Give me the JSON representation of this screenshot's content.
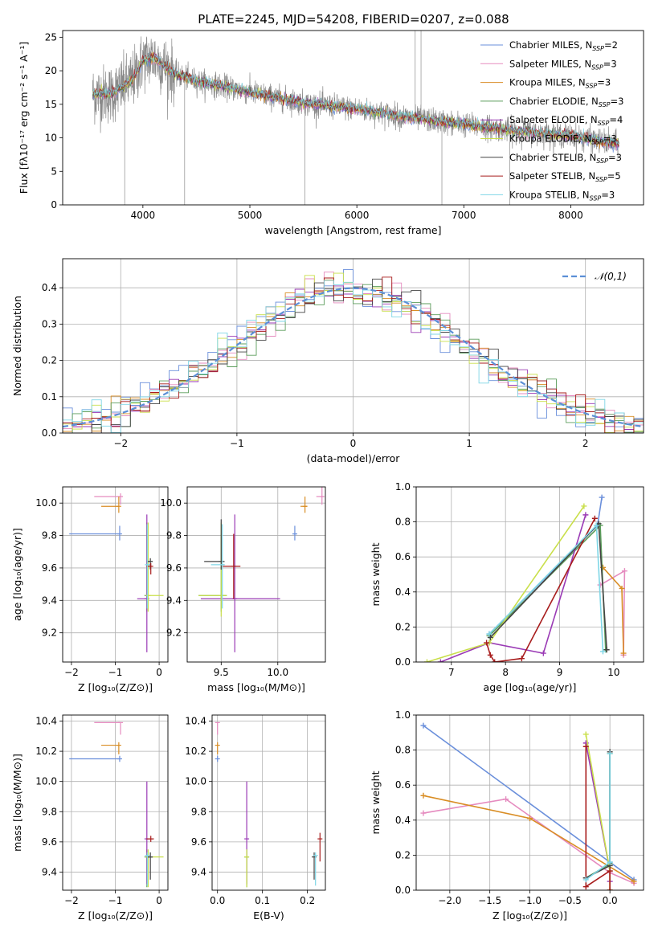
{
  "figure": {
    "title": "PLATE=2245, MJD=54208, FIBERID=0207, z=0.088",
    "models": [
      {
        "name": "Chabrier MILES",
        "nssp": "2",
        "color": "#6a8fdb"
      },
      {
        "name": "Salpeter MILES",
        "nssp": "3",
        "color": "#e58bbf"
      },
      {
        "name": "Kroupa MILES",
        "nssp": "3",
        "color": "#d98d24"
      },
      {
        "name": "Chabrier ELODIE",
        "nssp": "3",
        "color": "#5c9e5c"
      },
      {
        "name": "Salpeter ELODIE",
        "nssp": "4",
        "color": "#9a3ab5"
      },
      {
        "name": "Kroupa ELODIE",
        "nssp": "3",
        "color": "#c9df4a"
      },
      {
        "name": "Chabrier STELIB",
        "nssp": "3",
        "color": "#444444"
      },
      {
        "name": "Salpeter STELIB",
        "nssp": "5",
        "color": "#a81d1d"
      },
      {
        "name": "Kroupa STELIB",
        "nssp": "3",
        "color": "#7fd6e6"
      }
    ],
    "nssp_label": "N",
    "nssp_sub": "SSP"
  },
  "chart_data": [
    {
      "id": "spectrum",
      "type": "line",
      "xlabel": "wavelength [Angstrom, rest frame]",
      "ylabel": "Flux [fλ10⁻¹⁷ erg cm⁻² s⁻¹ A⁻¹]",
      "xlim": [
        3250,
        8680
      ],
      "ylim": [
        0,
        26
      ],
      "xticks": [
        4000,
        5000,
        6000,
        7000,
        8000
      ],
      "yticks": [
        0,
        5,
        10,
        15,
        20,
        25
      ],
      "legend": "right",
      "data_trend": {
        "x": [
          3530,
          3700,
          3900,
          4000,
          4100,
          4300,
          4500,
          5000,
          5500,
          6000,
          6500,
          7000,
          7500,
          8000,
          8450
        ],
        "flux": [
          16.5,
          16.5,
          18.5,
          21.5,
          22.0,
          19.5,
          18.5,
          16.8,
          15.2,
          14.3,
          13.0,
          12.0,
          11.0,
          10.3,
          9.0
        ]
      }
    },
    {
      "id": "residuals",
      "type": "histogram",
      "xlabel": "(data-model)/error",
      "ylabel": "Normed distribution",
      "xlim": [
        -2.5,
        2.5
      ],
      "ylim": [
        0,
        0.48
      ],
      "xticks": [
        -2,
        -1,
        0,
        1,
        2
      ],
      "yticks": [
        0,
        0.1,
        0.2,
        0.3,
        0.4
      ],
      "legend": "𝒩(0,1)",
      "legend_position": "top-right",
      "grid": true
    },
    {
      "id": "age_vs_Z",
      "type": "errorbar",
      "xlabel": "Z [log₁₀(Z/Z⊙)]",
      "ylabel": "age  [log₁₀(age/yr)]",
      "xlim": [
        -2.2,
        0.2
      ],
      "ylim": [
        9.02,
        10.1
      ],
      "xticks": [
        -2,
        -1,
        0
      ],
      "yticks": [
        9.2,
        9.4,
        9.6,
        9.8,
        10.0
      ],
      "grid": true,
      "points": [
        {
          "m": 0,
          "x": -0.9,
          "xerr": [
            1.15,
            0
          ],
          "y": 9.81,
          "yerr": [
            0.04,
            0.05
          ]
        },
        {
          "m": 1,
          "x": -0.88,
          "xerr": [
            0.6,
            0
          ],
          "y": 10.04,
          "yerr": [
            0.05,
            0.02
          ]
        },
        {
          "m": 2,
          "x": -0.92,
          "xerr": [
            0.4,
            0
          ],
          "y": 9.98,
          "yerr": [
            0.04,
            0.06
          ]
        },
        {
          "m": 3,
          "x": -0.28,
          "xerr": [
            0.02,
            0.02
          ],
          "y": 9.43,
          "yerr": [
            0.1,
            0.45
          ]
        },
        {
          "m": 4,
          "x": -0.28,
          "xerr": [
            0.22,
            0.02
          ],
          "y": 9.41,
          "yerr": [
            0.33,
            0.52
          ]
        },
        {
          "m": 5,
          "x": -0.25,
          "xerr": [
            0.05,
            0.35
          ],
          "y": 9.43,
          "yerr": [
            0.1,
            0.45
          ]
        },
        {
          "m": 6,
          "x": -0.2,
          "xerr": [
            0.08,
            0.05
          ],
          "y": 9.64,
          "yerr": [
            0.05,
            0.02
          ]
        },
        {
          "m": 7,
          "x": -0.19,
          "xerr": [
            0.1,
            0.02
          ],
          "y": 9.61,
          "yerr": [
            0.05,
            0.02
          ]
        },
        {
          "m": 8,
          "x": -0.27,
          "xerr": [
            0.02,
            0.04
          ],
          "y": 9.62,
          "yerr": [
            0.27,
            0.25
          ]
        }
      ]
    },
    {
      "id": "age_vs_mass",
      "type": "errorbar",
      "xlabel": "mass [log₁₀(M/M⊙)]",
      "ylabel": "",
      "xlim": [
        9.2,
        10.42
      ],
      "ylim": [
        9.02,
        10.1
      ],
      "xticks": [
        9.5,
        10.0
      ],
      "yticks": [
        9.2,
        9.4,
        9.6,
        9.8,
        10.0
      ],
      "grid": true,
      "points": [
        {
          "m": 0,
          "x": 10.15,
          "xerr": [
            0.02,
            0.02
          ],
          "y": 9.81,
          "yerr": [
            0.04,
            0.05
          ]
        },
        {
          "m": 1,
          "x": 10.39,
          "xerr": [
            0.05,
            0.02
          ],
          "y": 10.04,
          "yerr": [
            0.05,
            0.17
          ]
        },
        {
          "m": 2,
          "x": 10.24,
          "xerr": [
            0.04,
            0.02
          ],
          "y": 9.98,
          "yerr": [
            0.04,
            0.06
          ]
        },
        {
          "m": 3,
          "x": 9.5,
          "xerr": [
            0.2,
            0.05
          ],
          "y": 9.43,
          "yerr": [
            0.1,
            0.38
          ]
        },
        {
          "m": 4,
          "x": 9.62,
          "xerr": [
            0.3,
            0.4
          ],
          "y": 9.41,
          "yerr": [
            0.33,
            0.52
          ]
        },
        {
          "m": 5,
          "x": 9.5,
          "xerr": [
            0.2,
            0.05
          ],
          "y": 9.43,
          "yerr": [
            0.13,
            0.45
          ]
        },
        {
          "m": 6,
          "x": 9.5,
          "xerr": [
            0.15,
            0.03
          ],
          "y": 9.64,
          "yerr": [
            0.05,
            0.26
          ]
        },
        {
          "m": 7,
          "x": 9.61,
          "xerr": [
            0.1,
            0.06
          ],
          "y": 9.61,
          "yerr": [
            0.2,
            0.2
          ]
        },
        {
          "m": 8,
          "x": 9.51,
          "xerr": [
            0.1,
            0.02
          ],
          "y": 9.62,
          "yerr": [
            0.27,
            0.25
          ]
        }
      ]
    },
    {
      "id": "weight_vs_age",
      "type": "line",
      "xlabel": "age  [log₁₀(age/yr)]",
      "ylabel": "mass weight",
      "xlim": [
        6.35,
        10.55
      ],
      "ylim": [
        0,
        1
      ],
      "xticks": [
        7,
        8,
        9,
        10
      ],
      "yticks": [
        0,
        0.2,
        0.4,
        0.6,
        0.8,
        1.0
      ],
      "grid": true,
      "series": [
        {
          "m": 0,
          "x": [
            7.7,
            9.7,
            9.78
          ],
          "y": [
            0.16,
            0.78,
            0.94
          ]
        },
        {
          "m": 1,
          "x": [
            9.75,
            10.2,
            10.18
          ],
          "y": [
            0.44,
            0.52,
            0.04
          ]
        },
        {
          "m": 2,
          "x": [
            9.8,
            10.15,
            10.18
          ],
          "y": [
            0.54,
            0.42,
            0.05
          ]
        },
        {
          "m": 3,
          "x": [
            7.7,
            9.75,
            9.85
          ],
          "y": [
            0.15,
            0.78,
            0.07
          ]
        },
        {
          "m": 4,
          "x": [
            6.8,
            7.7,
            8.7,
            9.48
          ],
          "y": [
            0.0,
            0.11,
            0.05,
            0.84
          ]
        },
        {
          "m": 5,
          "x": [
            6.55,
            7.7,
            9.45
          ],
          "y": [
            0.0,
            0.11,
            0.89
          ]
        },
        {
          "m": 6,
          "x": [
            7.72,
            9.72,
            9.87
          ],
          "y": [
            0.14,
            0.79,
            0.07
          ]
        },
        {
          "m": 7,
          "x": [
            7.65,
            7.72,
            7.8,
            8.3,
            9.65
          ],
          "y": [
            0.11,
            0.04,
            0.0,
            0.02,
            0.82
          ]
        },
        {
          "m": 8,
          "x": [
            7.7,
            9.68,
            9.8
          ],
          "y": [
            0.16,
            0.78,
            0.06
          ]
        }
      ]
    },
    {
      "id": "mass_vs_Z",
      "type": "errorbar",
      "xlabel": "Z [log₁₀(Z/Z⊙)]",
      "ylabel": "mass [log₁₀(M/M⊙)]",
      "xlim": [
        -2.2,
        0.2
      ],
      "ylim": [
        9.28,
        10.44
      ],
      "xticks": [
        -2,
        -1,
        0
      ],
      "yticks": [
        9.4,
        9.6,
        9.8,
        10.0,
        10.2,
        10.4
      ],
      "grid": true,
      "points": [
        {
          "m": 0,
          "x": -0.9,
          "xerr": [
            1.15,
            0
          ],
          "y": 10.15,
          "yerr": [
            0.02,
            0.02
          ]
        },
        {
          "m": 1,
          "x": -0.88,
          "xerr": [
            0.6,
            0
          ],
          "y": 10.39,
          "yerr": [
            0.08,
            0.0
          ]
        },
        {
          "m": 2,
          "x": -0.92,
          "xerr": [
            0.4,
            0
          ],
          "y": 10.24,
          "yerr": [
            0.06,
            0.02
          ]
        },
        {
          "m": 3,
          "x": -0.28,
          "xerr": [
            0.02,
            0.02
          ],
          "y": 9.5,
          "yerr": [
            0.2,
            0.05
          ]
        },
        {
          "m": 4,
          "x": -0.28,
          "xerr": [
            0.02,
            0.02
          ],
          "y": 9.62,
          "yerr": [
            0.3,
            0.38
          ]
        },
        {
          "m": 5,
          "x": -0.25,
          "xerr": [
            0.05,
            0.35
          ],
          "y": 9.5,
          "yerr": [
            0.2,
            0.05
          ]
        },
        {
          "m": 6,
          "x": -0.2,
          "xerr": [
            0.08,
            0.05
          ],
          "y": 9.5,
          "yerr": [
            0.15,
            0.03
          ]
        },
        {
          "m": 7,
          "x": -0.19,
          "xerr": [
            0.1,
            0.07
          ],
          "y": 9.62,
          "yerr": [
            0.02,
            0.02
          ]
        },
        {
          "m": 8,
          "x": -0.27,
          "xerr": [
            0.02,
            0.04
          ],
          "y": 9.51,
          "yerr": [
            0.2,
            0.02
          ]
        }
      ]
    },
    {
      "id": "mass_vs_ebv",
      "type": "errorbar",
      "xlabel": "E(B-V)",
      "ylabel": "",
      "xlim": [
        -0.012,
        0.24
      ],
      "ylim": [
        9.28,
        10.44
      ],
      "xticks": [
        0.0,
        0.1,
        0.2
      ],
      "yticks": [
        9.4,
        9.6,
        9.8,
        10.0,
        10.2,
        10.4
      ],
      "grid": true,
      "points": [
        {
          "m": 0,
          "x": 0.0,
          "y": 10.15,
          "yerr": [
            0.02,
            0.02
          ]
        },
        {
          "m": 1,
          "x": 0.0,
          "y": 10.39,
          "yerr": [
            0.08,
            0.0
          ]
        },
        {
          "m": 2,
          "x": 0.0,
          "y": 10.24,
          "yerr": [
            0.06,
            0.02
          ]
        },
        {
          "m": 3,
          "x": 0.065,
          "y": 9.5,
          "yerr": [
            0.2,
            0.05
          ]
        },
        {
          "m": 4,
          "x": 0.065,
          "y": 9.62,
          "yerr": [
            0.3,
            0.38
          ]
        },
        {
          "m": 5,
          "x": 0.065,
          "y": 9.5,
          "yerr": [
            0.2,
            0.05
          ]
        },
        {
          "m": 6,
          "x": 0.215,
          "y": 9.5,
          "yerr": [
            0.15,
            0.03
          ]
        },
        {
          "m": 7,
          "x": 0.228,
          "y": 9.62,
          "yerr": [
            0.15,
            0.04
          ]
        },
        {
          "m": 8,
          "x": 0.218,
          "y": 9.51,
          "yerr": [
            0.2,
            0.02
          ]
        }
      ]
    },
    {
      "id": "weight_vs_Z",
      "type": "line",
      "xlabel": "Z [log₁₀(Z/Z⊙)]",
      "ylabel": "mass weight",
      "xlim": [
        -2.42,
        0.42
      ],
      "ylim": [
        0,
        1
      ],
      "xticks": [
        -2.0,
        -1.5,
        -1.0,
        -0.5,
        0.0
      ],
      "yticks": [
        0,
        0.2,
        0.4,
        0.6,
        0.8,
        1.0
      ],
      "grid": true,
      "series": [
        {
          "m": 0,
          "x": [
            -2.33,
            0.0,
            0.3
          ],
          "y": [
            0.94,
            0.16,
            0.06
          ]
        },
        {
          "m": 1,
          "x": [
            -2.33,
            -1.3,
            0.0,
            0.3
          ],
          "y": [
            0.44,
            0.52,
            0.1,
            0.04
          ]
        },
        {
          "m": 2,
          "x": [
            -2.33,
            -1.0,
            0.3
          ],
          "y": [
            0.54,
            0.41,
            0.05
          ]
        },
        {
          "m": 3,
          "x": [
            -0.3,
            0.0,
            0.0
          ],
          "y": [
            0.07,
            0.15,
            0.78
          ]
        },
        {
          "m": 4,
          "x": [
            -0.3,
            0.0,
            0.0
          ],
          "y": [
            0.84,
            0.11,
            0.05
          ]
        },
        {
          "m": 5,
          "x": [
            -0.3,
            0.0,
            0.0
          ],
          "y": [
            0.89,
            0.11,
            0.0
          ]
        },
        {
          "m": 6,
          "x": [
            -0.3,
            0.0,
            0.0
          ],
          "y": [
            0.07,
            0.14,
            0.79
          ]
        },
        {
          "m": 7,
          "x": [
            -0.3,
            -0.3,
            0.0,
            0.0
          ],
          "y": [
            0.82,
            0.02,
            0.11,
            0.0
          ]
        },
        {
          "m": 8,
          "x": [
            -0.3,
            0.0,
            0.0
          ],
          "y": [
            0.06,
            0.16,
            0.78
          ]
        }
      ]
    }
  ]
}
